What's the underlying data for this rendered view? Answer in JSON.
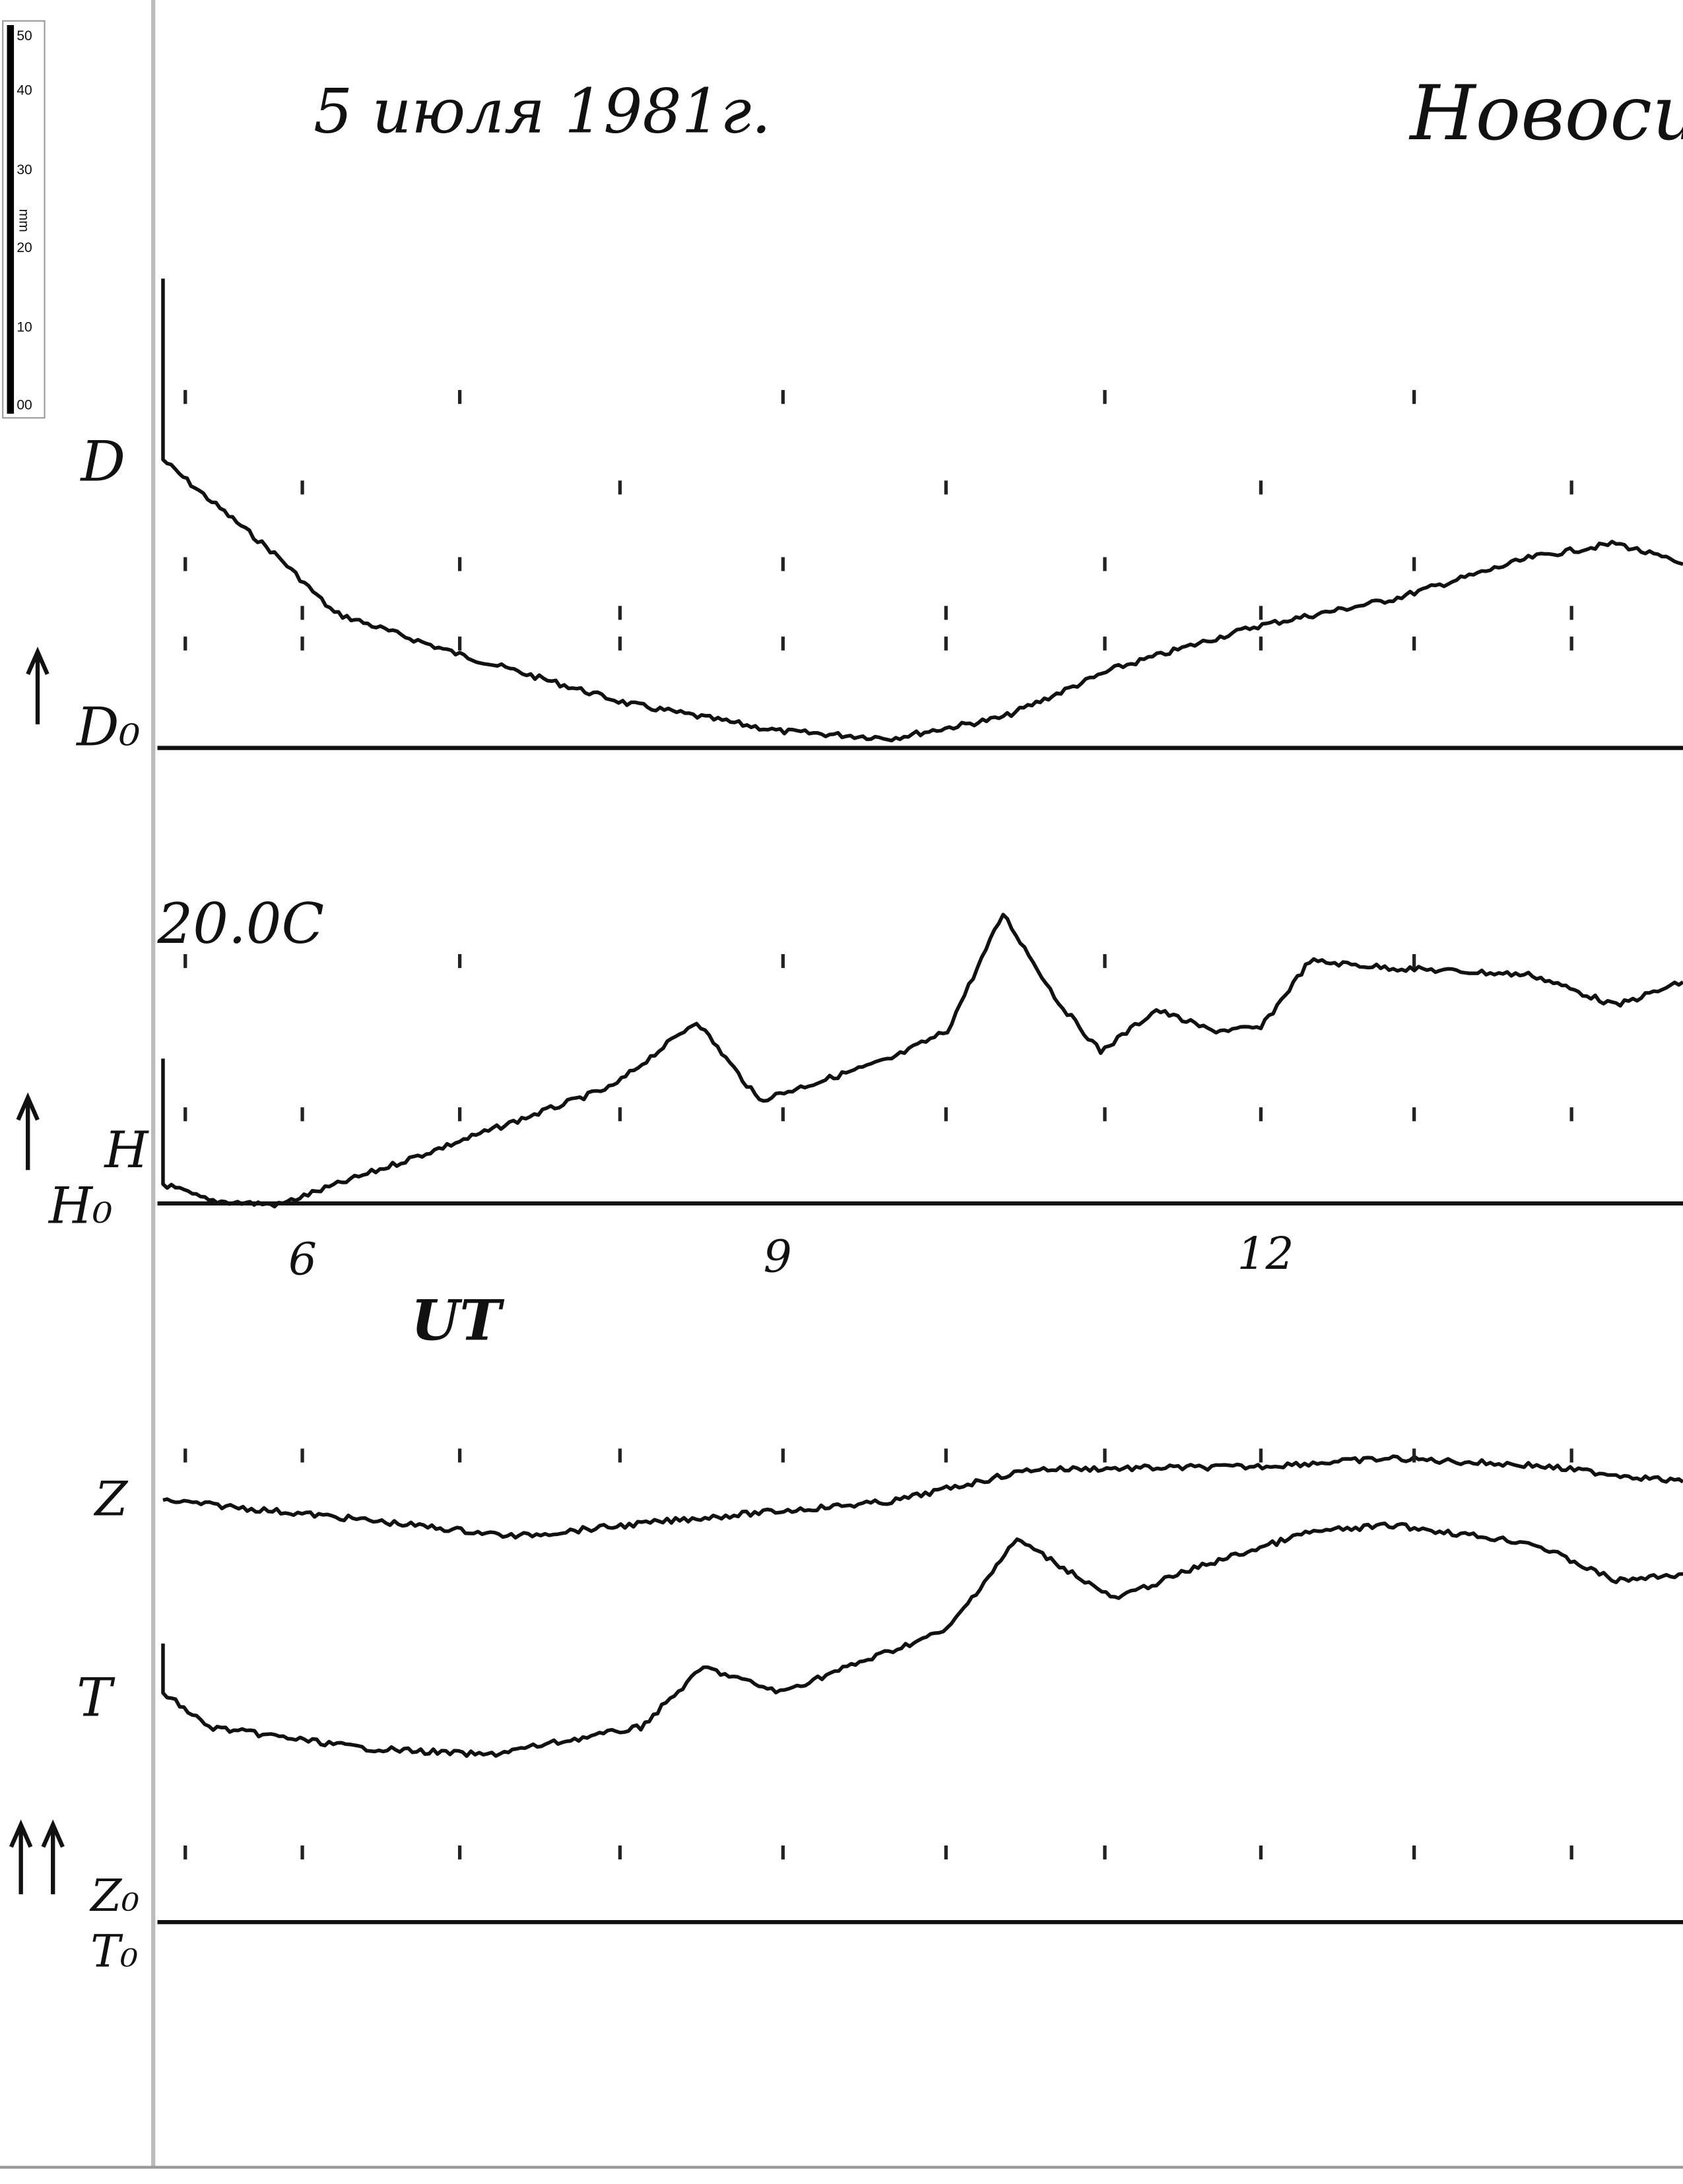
{
  "header": {
    "date": "5 июля 1981г.",
    "station": "Новоси"
  },
  "scale": {
    "labels": [
      "50",
      "40",
      "30",
      "20",
      "10",
      "00"
    ],
    "unit": "mm"
  },
  "labels": {
    "D": "D",
    "D0": "D₀",
    "time_mark": "20.0C",
    "H": "H",
    "H0": "H₀",
    "hours": [
      "6",
      "9",
      "12"
    ],
    "time_axis": "UT",
    "Z": "Z",
    "T": "T",
    "Z0": "Z₀",
    "T0": "T₀"
  }
}
